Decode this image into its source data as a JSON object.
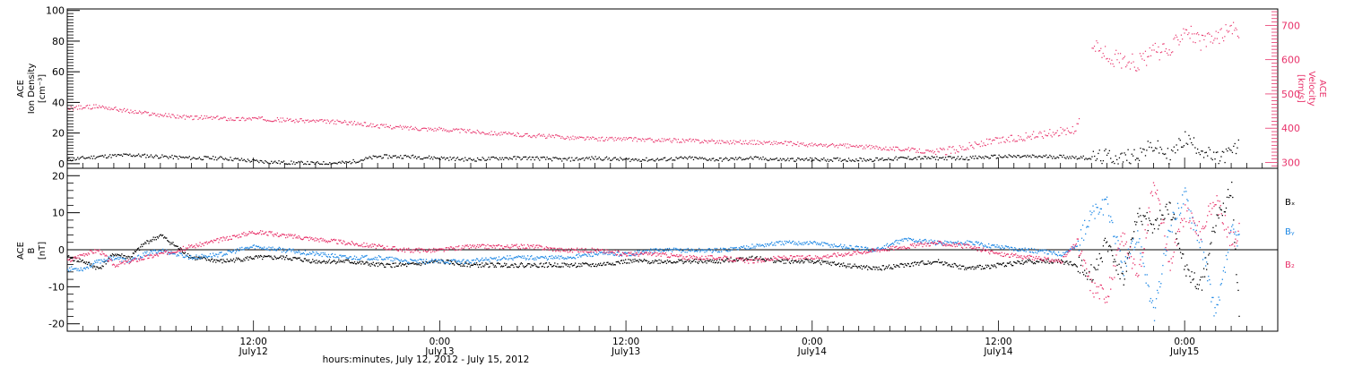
{
  "colors": {
    "density": "#000000",
    "velocity": "#e8336b",
    "bx": "#000000",
    "by": "#1e88e5",
    "bz": "#e8336b",
    "axis": "#000000"
  },
  "footer": {
    "xlabel": "hours:minutes, July 12, 2012 - July 15, 2012"
  },
  "x_axis": {
    "range": [
      0,
      78
    ],
    "ticks": [
      {
        "x": 12,
        "line1": "12:00",
        "line2": "July12"
      },
      {
        "x": 24,
        "line1": "0:00",
        "line2": "July13"
      },
      {
        "x": 36,
        "line1": "12:00",
        "line2": "July13"
      },
      {
        "x": 48,
        "line1": "0:00",
        "line2": "July14"
      },
      {
        "x": 60,
        "line1": "12:00",
        "line2": "July14"
      },
      {
        "x": 72,
        "line1": "0:00",
        "line2": "July15"
      }
    ]
  },
  "chart_data": [
    {
      "type": "scatter",
      "left_ylabel": [
        "ACE",
        "Ion Density",
        "[cm⁻³]"
      ],
      "right_ylabel": [
        "ACE",
        "Velocity",
        "[km/s]"
      ],
      "left_ylim": [
        -3,
        101
      ],
      "left_yticks": [
        "0",
        "20",
        "40",
        "60",
        "80",
        "100"
      ],
      "right_ylim": [
        283,
        748
      ],
      "right_yticks": [
        "300",
        "400",
        "500",
        "600",
        "700"
      ],
      "series": [
        {
          "key": "density",
          "axis": "left",
          "x": [
            0.0,
            2.0,
            4.0,
            6.0,
            8.0,
            10.0,
            12.0,
            14.0,
            16.0,
            18.0,
            20.0,
            22.0,
            24.0,
            26.0,
            28.0,
            30.0,
            32.0,
            34.0,
            36.0,
            38.0,
            40.0,
            42.0,
            44.0,
            46.0,
            48.0,
            50.0,
            52.0,
            54.0,
            56.0,
            58.0,
            60.0,
            62.0,
            64.0,
            66.0,
            67.0,
            68.0,
            69.0,
            70.0,
            71.0,
            72.0,
            73.0,
            74.0,
            75.0,
            75.5
          ],
          "y": [
            3,
            5,
            6,
            5,
            4,
            4,
            2,
            1,
            0.5,
            1,
            5,
            5,
            4,
            3,
            4,
            4,
            3,
            4,
            3,
            3,
            4,
            3,
            4,
            3,
            3,
            3,
            3,
            4,
            4,
            4,
            5,
            5,
            5,
            4,
            5,
            4,
            7,
            12,
            5,
            17,
            10,
            3,
            8,
            12
          ]
        },
        {
          "key": "velocity",
          "axis": "right",
          "x": [
            0.0,
            1.0,
            2.0,
            3.0,
            4.0,
            5.0,
            6.0,
            7.0,
            8.0,
            9.0,
            10.0,
            11.0,
            12.0,
            14.0,
            16.0,
            18.0,
            20.0,
            22.0,
            24.0,
            26.0,
            28.0,
            30.0,
            32.0,
            34.0,
            36.0,
            38.0,
            40.0,
            42.0,
            44.0,
            46.0,
            48.0,
            50.0,
            52.0,
            54.0,
            56.0,
            58.0,
            60.0,
            62.0,
            64.0,
            65.0,
            66.0,
            67.0,
            68.0,
            69.0,
            70.0,
            71.0,
            72.0,
            73.0,
            74.0,
            75.0,
            75.5
          ],
          "y": [
            460,
            462,
            465,
            458,
            450,
            445,
            440,
            436,
            432,
            432,
            430,
            428,
            430,
            425,
            422,
            418,
            408,
            402,
            398,
            392,
            385,
            380,
            375,
            370,
            370,
            366,
            365,
            362,
            360,
            358,
            352,
            350,
            345,
            340,
            330,
            348,
            365,
            378,
            392,
            395,
            650,
            610,
            600,
            592,
            625,
            622,
            700,
            648,
            668,
            690,
            670
          ]
        }
      ]
    },
    {
      "type": "scatter",
      "left_ylabel": [
        "ACE",
        "B",
        "[nT]"
      ],
      "ylim": [
        -22,
        22
      ],
      "yticks": [
        "-20",
        "-10",
        "0",
        "10",
        "20"
      ],
      "zero_line": 0,
      "legend": [
        "Bₓ",
        "Bᵧ",
        "B₂"
      ],
      "legend_position": "right",
      "series": [
        {
          "key": "bx",
          "x": [
            0.0,
            1.0,
            2.0,
            3.0,
            4.0,
            5.0,
            6.0,
            7.0,
            8.0,
            10.0,
            12.0,
            14.0,
            16.0,
            18.0,
            20.0,
            22.0,
            24.0,
            26.0,
            28.0,
            30.0,
            32.0,
            34.0,
            36.0,
            38.0,
            40.0,
            42.0,
            44.0,
            46.0,
            48.0,
            50.0,
            52.0,
            54.0,
            56.0,
            58.0,
            60.0,
            62.0,
            64.0,
            65.0,
            66.0,
            67.0,
            68.0,
            69.0,
            70.0,
            71.0,
            72.0,
            73.0,
            74.0,
            75.0,
            75.5
          ],
          "y": [
            -2,
            -3,
            -5,
            -1,
            -2,
            2,
            4,
            1,
            -2,
            -3,
            -2,
            -2,
            -3,
            -3,
            -4,
            -4,
            -3,
            -4,
            -4,
            -4,
            -4,
            -4,
            -3,
            -3,
            -3,
            -3,
            -2,
            -3,
            -3,
            -4,
            -5,
            -4,
            -3,
            -5,
            -4,
            -3,
            -3,
            -4,
            -6,
            2,
            -8,
            10,
            6,
            12,
            -5,
            -10,
            8,
            16,
            -18
          ]
        },
        {
          "key": "by",
          "x": [
            0.0,
            1.0,
            2.0,
            3.0,
            4.0,
            5.0,
            6.0,
            7.0,
            8.0,
            10.0,
            12.0,
            14.0,
            16.0,
            18.0,
            20.0,
            22.0,
            24.0,
            26.0,
            28.0,
            30.0,
            32.0,
            34.0,
            36.0,
            38.0,
            40.0,
            42.0,
            44.0,
            46.0,
            48.0,
            50.0,
            52.0,
            54.0,
            56.0,
            58.0,
            60.0,
            62.0,
            64.0,
            65.0,
            66.0,
            67.0,
            68.0,
            69.0,
            70.0,
            71.0,
            72.0,
            73.0,
            74.0,
            75.0,
            75.5
          ],
          "y": [
            -5,
            -5,
            -3,
            -2,
            -3,
            -1,
            0,
            -1,
            -2,
            -1,
            1,
            0,
            -1,
            -2,
            -2,
            -3,
            -3,
            -3,
            -2,
            -2,
            -2,
            -1,
            -1,
            0,
            0,
            0,
            1,
            2,
            2,
            1,
            0,
            3,
            2,
            2,
            1,
            0,
            -1,
            1,
            10,
            12,
            -5,
            4,
            -18,
            6,
            15,
            2,
            -18,
            5,
            3
          ]
        },
        {
          "key": "bz",
          "x": [
            0.0,
            1.0,
            2.0,
            3.0,
            4.0,
            5.0,
            6.0,
            7.0,
            8.0,
            10.0,
            12.0,
            14.0,
            16.0,
            18.0,
            20.0,
            22.0,
            24.0,
            26.0,
            28.0,
            30.0,
            32.0,
            34.0,
            36.0,
            38.0,
            40.0,
            42.0,
            44.0,
            46.0,
            48.0,
            50.0,
            52.0,
            54.0,
            56.0,
            58.0,
            60.0,
            62.0,
            64.0,
            65.0,
            66.0,
            67.0,
            68.0,
            69.0,
            70.0,
            71.0,
            72.0,
            73.0,
            74.0,
            75.0,
            75.5
          ],
          "y": [
            -3,
            -1,
            0,
            -4,
            -3,
            -2,
            -1,
            0,
            1,
            3,
            5,
            4,
            3,
            2,
            1,
            0,
            0,
            1,
            1,
            1,
            0,
            0,
            -1,
            -1,
            -2,
            -2,
            -3,
            -2,
            -2,
            -1,
            0,
            1,
            2,
            1,
            -1,
            -2,
            -3,
            2,
            -10,
            -12,
            4,
            -8,
            20,
            -4,
            10,
            5,
            14,
            2,
            5
          ]
        }
      ]
    }
  ]
}
